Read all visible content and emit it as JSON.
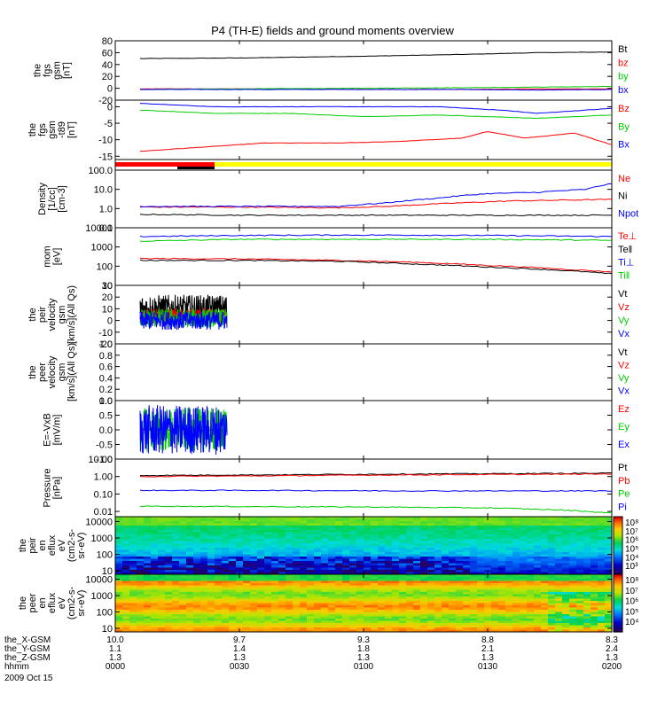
{
  "title": "P4 (TH-E) fields and ground moments overview",
  "chart_data": {
    "type": "line",
    "time_ticks": [
      "0000",
      "0030",
      "0100",
      "0130",
      "0200"
    ],
    "panels": [
      {
        "id": "fgs-gsm-b",
        "ylabel_lines": [
          "the",
          "fgs",
          "gsm",
          "[nT]"
        ],
        "ylim": [
          -20,
          80
        ],
        "yticks": [
          "80",
          "60",
          "40",
          "20",
          "0",
          "-20"
        ],
        "series": [
          {
            "name": "Bt",
            "color": "#000000",
            "t": [
              0.1,
              0.5,
              1.0,
              1.4,
              1.7,
              2.0
            ],
            "values": [
              50,
              51,
              54,
              57,
              60,
              61
            ]
          },
          {
            "name": "bz",
            "color": "#ff0000",
            "t": [
              0.1,
              0.5,
              1.0,
              1.4,
              1.7,
              2.0
            ],
            "values": [
              -1,
              -1,
              -2,
              -2,
              -1,
              -1
            ]
          },
          {
            "name": "by",
            "color": "#00cc00",
            "t": [
              0.1,
              0.5,
              1.0,
              1.4,
              1.7,
              2.0
            ],
            "values": [
              -2,
              -1,
              0,
              1,
              2,
              3
            ]
          },
          {
            "name": "bx",
            "color": "#0000ff",
            "t": [
              0.1,
              0.5,
              1.0,
              1.4,
              1.7,
              2.0
            ],
            "values": [
              -2,
              -2,
              -2,
              -2,
              -3,
              -2
            ]
          }
        ]
      },
      {
        "id": "fgs-gsm-b-dip",
        "ylabel_lines": [
          "the",
          "fgs",
          "gsm",
          "-t89",
          "[nT]"
        ],
        "ylim": [
          -16,
          2
        ],
        "yticks": [
          "0",
          "-5",
          "-10",
          "-15"
        ],
        "series": [
          {
            "name": "Bz",
            "color": "#ff0000",
            "t": [
              0.1,
              0.3,
              0.6,
              0.9,
              1.15,
              1.4,
              1.5,
              1.65,
              1.85,
              2.0
            ],
            "values": [
              -13.5,
              -12.5,
              -11,
              -11,
              -10.5,
              -9.5,
              -7.5,
              -9.5,
              -8,
              -11.5
            ]
          },
          {
            "name": "By",
            "color": "#00cc00",
            "t": [
              0.1,
              0.4,
              0.7,
              1.0,
              1.3,
              1.5,
              1.7,
              2.0
            ],
            "values": [
              -1,
              -2,
              -2,
              -3,
              -2.5,
              -3,
              -3.5,
              -2.5
            ]
          },
          {
            "name": "Bx",
            "color": "#0000ff",
            "t": [
              0.1,
              0.4,
              0.7,
              1.0,
              1.3,
              1.55,
              1.7,
              2.0
            ],
            "values": [
              1,
              0,
              0,
              0,
              0,
              -1,
              -2,
              -0.5
            ]
          }
        ]
      },
      {
        "id": "mode-bar",
        "type": "status-bar",
        "segments": [
          {
            "color": "#ff0000",
            "t0": 0.0,
            "t1": 0.4,
            "row": "top"
          },
          {
            "color": "#ffff00",
            "t0": 0.4,
            "t1": 2.0,
            "row": "top"
          },
          {
            "color": "#000000",
            "t0": 0.25,
            "t1": 0.4,
            "row": "bottom"
          }
        ]
      },
      {
        "id": "density",
        "ylabel_lines": [
          "Density",
          "[1/cc]",
          "[cm-3]"
        ],
        "log": true,
        "ylim": [
          0.1,
          100
        ],
        "yticks": [
          "100.0",
          "10.0",
          "1.0",
          "0.1"
        ],
        "series": [
          {
            "name": "Ne",
            "color": "#ff0000",
            "t": [
              0.1,
              0.5,
              0.9,
              1.1,
              1.4,
              1.6,
              2.0
            ],
            "values": [
              1.2,
              1.2,
              1.1,
              1.3,
              2.0,
              2.5,
              3.0
            ]
          },
          {
            "name": "Ni",
            "color": "#000000",
            "t": [
              0.1,
              0.5,
              1.0,
              1.5,
              2.0
            ],
            "values": [
              0.5,
              0.45,
              0.45,
              0.45,
              0.45
            ]
          },
          {
            "name": "Npot",
            "color": "#0000ff",
            "t": [
              0.1,
              0.5,
              0.9,
              1.1,
              1.3,
              1.5,
              1.7,
              1.9,
              2.0
            ],
            "values": [
              1.3,
              1.3,
              1.3,
              2.0,
              3.5,
              6.0,
              7.0,
              10.0,
              20.0
            ]
          }
        ]
      },
      {
        "id": "temperature",
        "ylabel_lines": [
          "mom",
          "[eV]"
        ],
        "log": true,
        "ylim": [
          10,
          10000
        ],
        "yticks": [
          "10000",
          "1000",
          "100",
          "10"
        ],
        "series": [
          {
            "name": "Te⊥",
            "color": "#ff0000",
            "t": [
              0.1,
              0.5,
              0.9,
              1.2,
              1.5,
              1.8,
              2.0
            ],
            "values": [
              250,
              240,
              200,
              160,
              110,
              70,
              50
            ]
          },
          {
            "name": "Te‖",
            "color": "#000000",
            "t": [
              0.1,
              0.5,
              0.9,
              1.2,
              1.5,
              1.8,
              2.0
            ],
            "values": [
              200,
              200,
              180,
              130,
              90,
              60,
              40
            ]
          },
          {
            "name": "Ti⊥",
            "color": "#0000ff",
            "t": [
              0.1,
              0.5,
              1.0,
              1.5,
              2.0
            ],
            "values": [
              3500,
              4000,
              4200,
              4000,
              3500
            ]
          },
          {
            "name": "Ti‖",
            "color": "#00cc00",
            "t": [
              0.1,
              0.5,
              1.0,
              1.5,
              2.0
            ],
            "values": [
              2000,
              2500,
              2500,
              2500,
              2200
            ]
          }
        ]
      },
      {
        "id": "peir-velocity",
        "ylabel_lines": [
          "the",
          "peir",
          "velocity",
          "gsm",
          "[km/s](All Qs)"
        ],
        "ylim": [
          -20,
          30
        ],
        "yticks": [
          "30",
          "20",
          "10",
          "0",
          "-10",
          "-20"
        ],
        "noise_span": [
          0.1,
          0.45
        ],
        "series": [
          {
            "name": "Vt",
            "color": "#000000",
            "center": 10,
            "amplitude": 12
          },
          {
            "name": "Vz",
            "color": "#ff0000",
            "center": 3,
            "amplitude": 7
          },
          {
            "name": "Vy",
            "color": "#00cc00",
            "center": 2,
            "amplitude": 8
          },
          {
            "name": "Vx",
            "color": "#0000ff",
            "center": 0,
            "amplitude": 8
          }
        ]
      },
      {
        "id": "peer-velocity",
        "ylabel_lines": [
          "the",
          "peer",
          "velocity",
          "gsm",
          "[km/s](All Qs)"
        ],
        "ylim": [
          0,
          1
        ],
        "yticks": [
          "1.0",
          "0.8",
          "0.6",
          "0.4",
          "0.2",
          "0.0"
        ],
        "series": [
          {
            "name": "Vt",
            "color": "#000000"
          },
          {
            "name": "Vz",
            "color": "#ff0000"
          },
          {
            "name": "Vy",
            "color": "#00cc00"
          },
          {
            "name": "Vx",
            "color": "#0000ff"
          }
        ]
      },
      {
        "id": "efield",
        "ylabel_lines": [
          "E=-VxB",
          "[mV/m]"
        ],
        "ylim": [
          -1,
          1
        ],
        "yticks": [
          "1.0",
          "0.5",
          "0.0",
          "-0.5",
          "-1.0"
        ],
        "noise_span": [
          0.1,
          0.45
        ],
        "series": [
          {
            "name": "Ez",
            "color": "#ff0000",
            "center": 0,
            "amplitude": 0.02
          },
          {
            "name": "Ey",
            "color": "#00cc00",
            "center": 0,
            "amplitude": 0.75
          },
          {
            "name": "Ex",
            "color": "#0000ff",
            "center": 0,
            "amplitude": 0.85
          }
        ]
      },
      {
        "id": "pressure",
        "ylabel_lines": [
          "Pressure",
          "[nPa]"
        ],
        "log": true,
        "ylim": [
          0.005,
          10
        ],
        "yticks": [
          "10.00",
          "1.00",
          "0.10",
          "0.01"
        ],
        "series": [
          {
            "name": "Pt",
            "color": "#000000",
            "t": [
              0.1,
              0.6,
              1.2,
              2.0
            ],
            "values": [
              1.15,
              1.25,
              1.4,
              1.55
            ]
          },
          {
            "name": "Pb",
            "color": "#ff0000",
            "t": [
              0.1,
              0.6,
              1.2,
              2.0
            ],
            "values": [
              1.0,
              1.1,
              1.25,
              1.4
            ]
          },
          {
            "name": "Pe",
            "color": "#00cc00",
            "t": [
              0.1,
              0.5,
              1.0,
              1.5,
              1.8,
              2.0
            ],
            "values": [
              0.02,
              0.019,
              0.018,
              0.016,
              0.012,
              0.008
            ]
          },
          {
            "name": "Pi",
            "color": "#0000ff",
            "t": [
              0.1,
              0.6,
              1.2,
              2.0
            ],
            "values": [
              0.16,
              0.16,
              0.15,
              0.15
            ]
          }
        ]
      },
      {
        "id": "peir-spectrogram",
        "type": "heatmap",
        "ylabel_lines": [
          "the",
          "peir",
          "en",
          "eflux",
          "eV",
          "(cm2-s-",
          "sr-eV)"
        ],
        "log": true,
        "ylim": [
          6,
          20000
        ],
        "yticks": [
          "10000",
          "1000",
          "100",
          "10"
        ],
        "colorbar_ticks": [
          "10⁸",
          "10⁷",
          "10⁶",
          "10⁵",
          "10⁴",
          "10³"
        ]
      },
      {
        "id": "peer-spectrogram",
        "type": "heatmap",
        "ylabel_lines": [
          "the",
          "peer",
          "en",
          "eflux",
          "eV",
          "(cm2-s-",
          "sr-eV)"
        ],
        "log": true,
        "ylim": [
          6,
          20000
        ],
        "yticks": [
          "10000",
          "1000",
          "100",
          "10"
        ],
        "colorbar_ticks": [
          "10⁸",
          "10⁷",
          "10⁶",
          "10⁵",
          "10⁴"
        ]
      }
    ],
    "ephemeris": [
      {
        "label": "the_X-GSM",
        "values": [
          "10.0",
          "9.7",
          "9.3",
          "8.8",
          "8.3"
        ]
      },
      {
        "label": "the_Y-GSM",
        "values": [
          "1.1",
          "1.4",
          "1.8",
          "2.1",
          "2.4"
        ]
      },
      {
        "label": "the_Z-GSM",
        "values": [
          "1.3",
          "1.3",
          "1.3",
          "1.3",
          "1.3"
        ]
      },
      {
        "label": "hhmm",
        "values": [
          "0000",
          "0030",
          "0100",
          "0130",
          "0200"
        ]
      }
    ],
    "date_label": "2009 Oct 15"
  }
}
